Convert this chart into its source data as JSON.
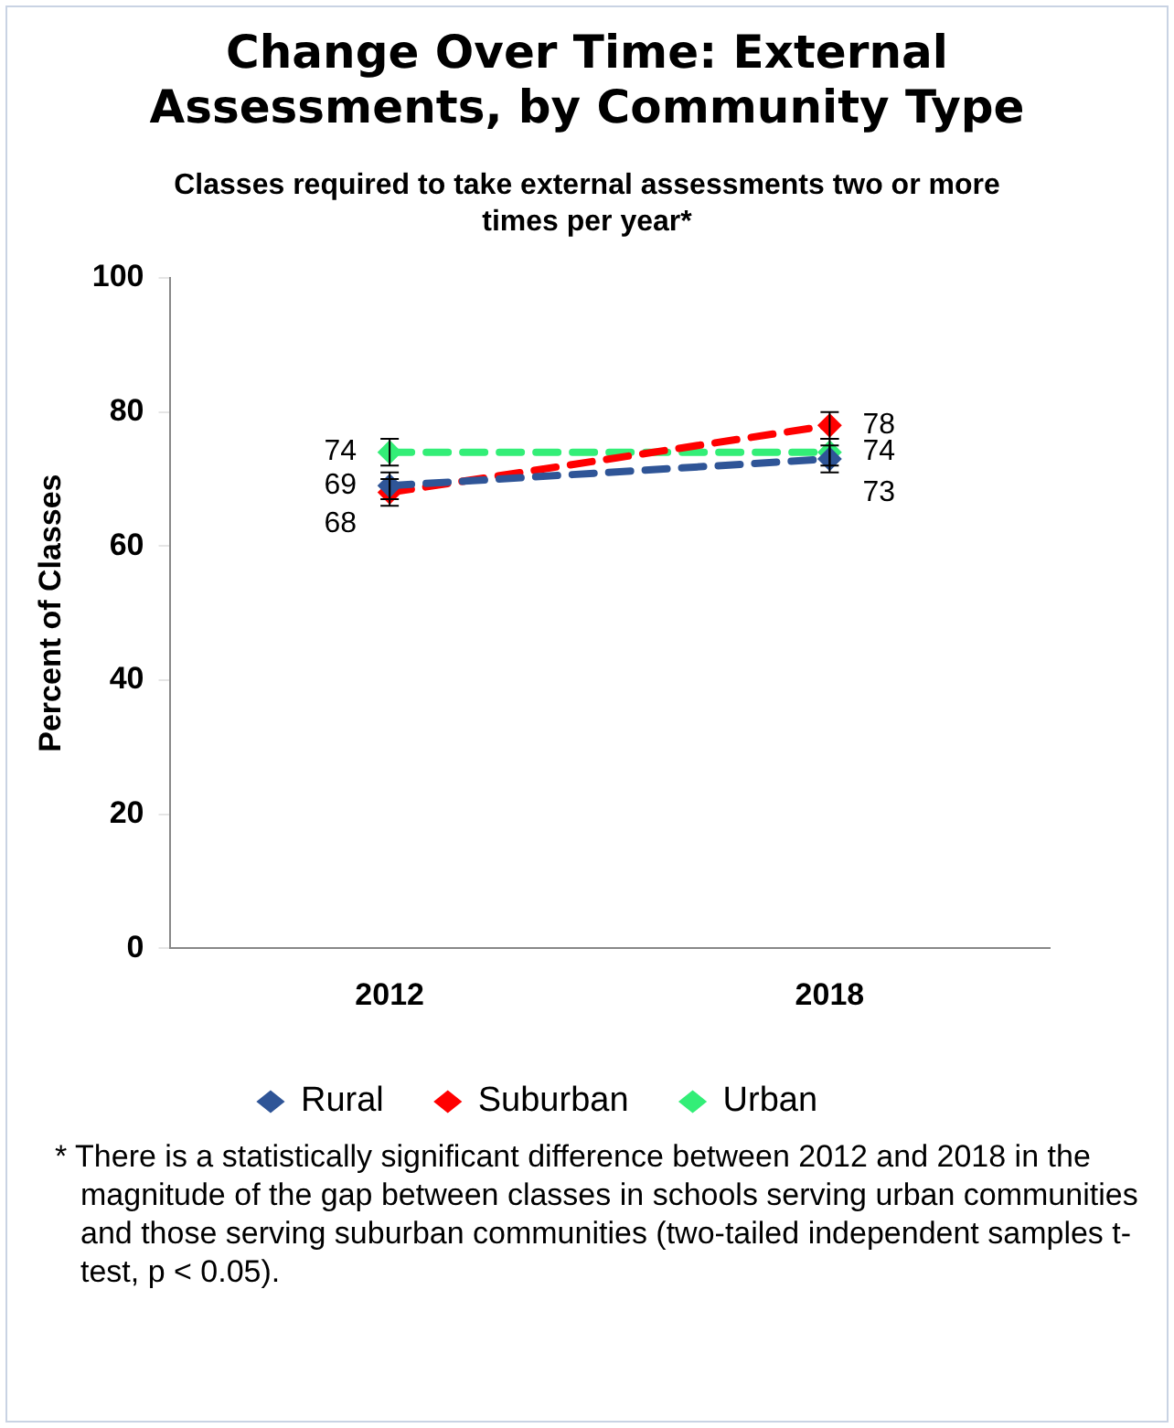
{
  "chart_data": {
    "type": "line",
    "title": "Change Over Time: External Assessments, by Community Type",
    "subtitle": "Classes required to take external assessments two or more times per year*",
    "ylabel": "Percent of Classes",
    "categories": [
      "2012",
      "2018"
    ],
    "series": [
      {
        "name": "Rural",
        "color": "#2f5597",
        "values": [
          69,
          73
        ],
        "errors": [
          2,
          2
        ]
      },
      {
        "name": "Suburban",
        "color": "#ff0000",
        "values": [
          68,
          78
        ],
        "errors": [
          2,
          2
        ]
      },
      {
        "name": "Urban",
        "color": "#33ee77",
        "values": [
          74,
          74
        ],
        "errors": [
          2,
          2
        ]
      }
    ],
    "ylim": [
      0,
      100
    ],
    "yticks": [
      0,
      20,
      40,
      60,
      80,
      100
    ],
    "grid": false,
    "legend": "bottom",
    "marker": "diamond",
    "line_style": "dashed",
    "data_labels": true,
    "annotations": [
      "* There is a statistically significant difference between 2012 and 2018 in the magnitude of the gap between classes in schools serving urban communities and those serving suburban communities (two-tailed independent samples t-test, p < 0.05)."
    ]
  }
}
